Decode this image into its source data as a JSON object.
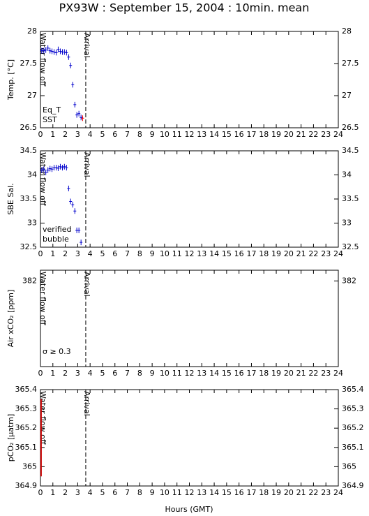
{
  "title": "PX93W : September 15, 2004 : 10min. mean",
  "xlabel": "Hours (GMT)",
  "chart_data": [
    {
      "type": "scatter",
      "ylabel": "Temp. [°C]",
      "xlim": [
        0,
        24
      ],
      "xticks": [
        0,
        1,
        2,
        3,
        4,
        5,
        6,
        7,
        8,
        9,
        10,
        11,
        12,
        13,
        14,
        15,
        16,
        17,
        18,
        19,
        20,
        21,
        22,
        23,
        24
      ],
      "ylim": [
        26.5,
        28
      ],
      "yticks": [
        26.5,
        27,
        27.5,
        28
      ],
      "annotations": [
        {
          "text": "Water flow off",
          "x": 0.1
        },
        {
          "text": "Arrival",
          "x": 3.65
        }
      ],
      "series": [
        {
          "name": "Eq_T",
          "color": "#ff0000",
          "x": [
            3.4
          ],
          "values": [
            26.65
          ]
        },
        {
          "name": "SST",
          "color": "#0000cc",
          "x": [
            0.1,
            0.27,
            0.43,
            0.6,
            0.77,
            0.93,
            1.1,
            1.27,
            1.43,
            1.6,
            1.77,
            1.93,
            2.1,
            2.27,
            2.43,
            2.6,
            2.77,
            2.93,
            3.1,
            3.27
          ],
          "values": [
            27.7,
            27.7,
            27.71,
            27.74,
            27.7,
            27.69,
            27.68,
            27.67,
            27.72,
            27.69,
            27.68,
            27.68,
            27.67,
            27.6,
            27.47,
            27.17,
            26.86,
            26.7,
            26.72,
            26.66
          ]
        }
      ]
    },
    {
      "type": "scatter",
      "ylabel": "SBE Sal.",
      "xlim": [
        0,
        24
      ],
      "xticks": [
        0,
        1,
        2,
        3,
        4,
        5,
        6,
        7,
        8,
        9,
        10,
        11,
        12,
        13,
        14,
        15,
        16,
        17,
        18,
        19,
        20,
        21,
        22,
        23,
        24
      ],
      "ylim": [
        32.5,
        34.5
      ],
      "yticks": [
        32.5,
        33,
        33.5,
        34,
        34.5
      ],
      "annotations": [
        {
          "text": "Water flow off",
          "x": 0.1
        },
        {
          "text": "Arrival",
          "x": 3.65
        }
      ],
      "series": [
        {
          "name": "verified",
          "color": "#0000cc",
          "x": [
            0.1,
            0.27,
            0.43,
            0.6,
            0.77,
            0.93,
            1.1,
            1.27,
            1.43,
            1.6,
            1.77,
            1.93,
            2.1,
            2.27,
            2.43,
            2.6,
            2.77,
            2.93,
            3.1,
            3.27
          ],
          "values": [
            34.1,
            34.12,
            34.05,
            34.1,
            34.13,
            34.12,
            34.15,
            34.15,
            34.14,
            34.17,
            34.15,
            34.17,
            34.15,
            33.72,
            33.45,
            33.38,
            33.25,
            32.85,
            32.85,
            32.6
          ]
        },
        {
          "name": "bubble",
          "color": "#cc00cc",
          "x": [],
          "values": []
        }
      ]
    },
    {
      "type": "scatter",
      "ylabel": "Air xCO₂ [ppm]",
      "xlim": [
        0,
        24
      ],
      "xticks": [
        0,
        1,
        2,
        3,
        4,
        5,
        6,
        7,
        8,
        9,
        10,
        11,
        12,
        13,
        14,
        15,
        16,
        17,
        18,
        19,
        20,
        21,
        22,
        23,
        24
      ],
      "ylim": [
        381.6,
        382.05
      ],
      "yticks": [
        382
      ],
      "legend_note": "σ ≥ 0.3",
      "legend_note_color": "#cc00cc",
      "annotations": [
        {
          "text": "Water flow off",
          "x": 0.1
        },
        {
          "text": "Arrival",
          "x": 3.65
        }
      ],
      "series": []
    },
    {
      "type": "line",
      "ylabel": "pCO₂ [μatm]",
      "xlim": [
        0,
        24
      ],
      "xticks": [
        0,
        1,
        2,
        3,
        4,
        5,
        6,
        7,
        8,
        9,
        10,
        11,
        12,
        13,
        14,
        15,
        16,
        17,
        18,
        19,
        20,
        21,
        22,
        23,
        24
      ],
      "ylim": [
        364.9,
        365.4
      ],
      "yticks": [
        364.9,
        365,
        365.1,
        365.2,
        365.3,
        365.4
      ],
      "annotations": [
        {
          "text": "Water flow off",
          "x": 0.1
        },
        {
          "text": "Arrival",
          "x": 3.65
        }
      ],
      "series": [
        {
          "color": "#cc0000",
          "x": [
            0.05,
            0.05
          ],
          "values": [
            364.95,
            365.35
          ]
        }
      ]
    }
  ]
}
